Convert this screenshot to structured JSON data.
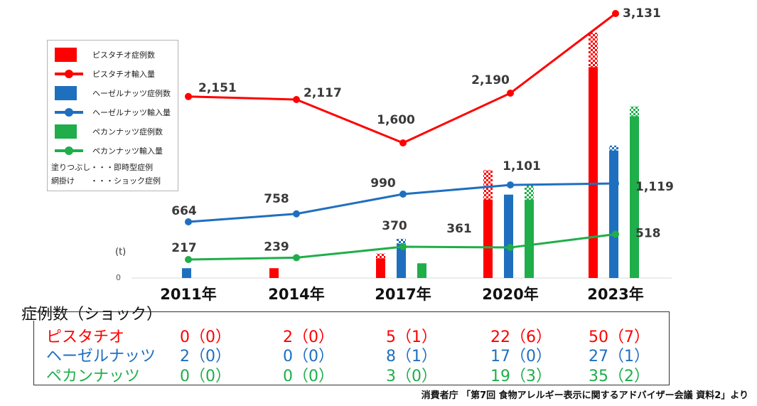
{
  "chart_data": {
    "type": "bar+line",
    "categories": [
      "2011年",
      "2014年",
      "2017年",
      "2020年",
      "2023年"
    ],
    "unit_label": "(t)",
    "zero_label": "0",
    "bar_series": [
      {
        "name": "ピスタチオ症例数",
        "color": "#ff0000",
        "values": [
          0,
          2,
          5,
          22,
          50
        ],
        "shock": [
          0,
          0,
          1,
          6,
          7
        ]
      },
      {
        "name": "ヘーゼルナッツ症例数",
        "color": "#1f6fbf",
        "values": [
          2,
          0,
          8,
          17,
          27
        ],
        "shock": [
          0,
          0,
          1,
          0,
          1
        ]
      },
      {
        "name": "ペカンナッツ症例数",
        "color": "#1fae4a",
        "values": [
          0,
          0,
          3,
          19,
          35
        ],
        "shock": [
          0,
          0,
          0,
          3,
          2
        ]
      }
    ],
    "line_series": [
      {
        "name": "ピスタチオ輸入量",
        "color": "#ff0000",
        "values": [
          2151,
          2117,
          1600,
          2190,
          3131
        ],
        "labels": [
          "2,151",
          "2,117",
          "1,600",
          "2,190",
          "3,131"
        ]
      },
      {
        "name": "ヘーゼルナッツ輸入量",
        "color": "#1f6fbf",
        "values": [
          664,
          758,
          990,
          1101,
          1119
        ],
        "labels": [
          "664",
          "758",
          "990",
          "1,101",
          "1,119"
        ]
      },
      {
        "name": "ペカンナッツ輸入量",
        "color": "#1fae4a",
        "values": [
          217,
          239,
          370,
          361,
          518
        ],
        "labels": [
          "217",
          "239",
          "370",
          "361",
          "518"
        ]
      }
    ]
  },
  "legend": {
    "items": [
      "ピスタチオ症例数",
      "ピスタチオ輸入量",
      "ヘーゼルナッツ症例数",
      "ヘーゼルナッツ輸入量",
      "ペカンナッツ症例数",
      "ペカンナッツ輸入量"
    ],
    "note_solid": "塗りつぶし・・・即時型症例",
    "note_hatch": "網掛け　　・・・ショック症例"
  },
  "table": {
    "title": "症例数（ショック）",
    "rows": [
      {
        "label": "ピスタチオ",
        "color": "#ff0000",
        "cells": [
          "0（0）",
          "2（0）",
          "5（1）",
          "22（6）",
          "50（7）"
        ]
      },
      {
        "label": "ヘーゼルナッツ",
        "color": "#1f6fbf",
        "cells": [
          "2（0）",
          "0（0）",
          "8（1）",
          "17（0）",
          "27（1）"
        ]
      },
      {
        "label": "ペカンナッツ",
        "color": "#1fae4a",
        "cells": [
          "0（0）",
          "0（0）",
          "3（0）",
          "19（3）",
          "35（2）"
        ]
      }
    ]
  },
  "source": "消費者庁 「第7回 食物アレルギー表示に関するアドバイザー会議 資料2」より"
}
